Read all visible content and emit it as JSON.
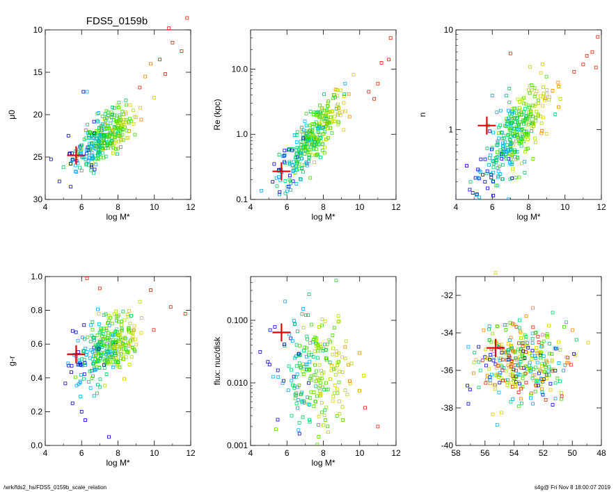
{
  "page_title": "FDS5_0159b",
  "footer": {
    "left": "/wrk/fds2_hs/FDS5_0159b_scale_relation",
    "right": "s4g@  Fri Nov  8 18:00:07 2019"
  },
  "colors": {
    "highlight": "#dd0000",
    "frame": "#000000",
    "color_scale": [
      "#0000cc",
      "#00aaff",
      "#00cc66",
      "#44dd00",
      "#aadd00",
      "#ddcc00",
      "#ee8800",
      "#dd2200"
    ]
  },
  "chart_data": [
    {
      "type": "scatter",
      "id": "mu0",
      "title": "FDS5_0159b",
      "xlabel": "log M*",
      "ylabel": "μ0",
      "xlim": [
        4,
        12
      ],
      "ylim": [
        30,
        10
      ],
      "yscale": "linear",
      "xticks": [
        "4",
        "6",
        "8",
        "10",
        "12"
      ],
      "yticks": [
        "10",
        "15",
        "20",
        "25",
        "30"
      ],
      "highlight": {
        "x": 5.7,
        "y": 24.8
      },
      "cloud": {
        "xc": 7.2,
        "yc": 22.8,
        "slope": -1.55,
        "sx": 0.85,
        "sy": 1.3
      },
      "points": [
        {
          "x": 11.8,
          "y": 8.6,
          "c": 7
        },
        {
          "x": 10.8,
          "y": 9.8,
          "c": 7
        },
        {
          "x": 11.0,
          "y": 11.5,
          "c": 7
        },
        {
          "x": 11.5,
          "y": 12.5,
          "c": 7
        },
        {
          "x": 10.3,
          "y": 13.5,
          "c": 7
        },
        {
          "x": 10.6,
          "y": 15.2,
          "c": 7
        },
        {
          "x": 9.8,
          "y": 14.0,
          "c": 6
        },
        {
          "x": 9.5,
          "y": 15.5,
          "c": 6
        },
        {
          "x": 9.2,
          "y": 16.8,
          "c": 7
        },
        {
          "x": 6.1,
          "y": 17.3,
          "c": 0
        },
        {
          "x": 6.3,
          "y": 17.3,
          "c": 1
        },
        {
          "x": 5.0,
          "y": 26.2,
          "c": 2
        },
        {
          "x": 5.4,
          "y": 25.8,
          "c": 0
        },
        {
          "x": 6.0,
          "y": 26.6,
          "c": 2
        }
      ]
    },
    {
      "type": "scatter",
      "id": "re",
      "xlabel": "log M*",
      "ylabel": "Re (kpc)",
      "xlim": [
        4,
        12
      ],
      "ylim": [
        0.1,
        40
      ],
      "yscale": "log",
      "xticks": [
        "4",
        "6",
        "8",
        "10",
        "12"
      ],
      "yticks": [
        {
          "v": 0.1,
          "label": "0.1"
        },
        {
          "v": 1.0,
          "label": "1.0"
        },
        {
          "v": 10.0,
          "label": "10.0"
        }
      ],
      "highlight": {
        "x": 5.7,
        "y": 0.27
      },
      "cloud": {
        "xc": 7.3,
        "yc": -0.08,
        "slope": 0.32,
        "sx": 0.9,
        "sy": 0.2
      },
      "points": [
        {
          "x": 11.7,
          "y": 30.0,
          "c": 7
        },
        {
          "x": 11.6,
          "y": 14.0,
          "c": 7
        },
        {
          "x": 11.2,
          "y": 12.5,
          "c": 7
        },
        {
          "x": 11.0,
          "y": 6.0,
          "c": 7
        },
        {
          "x": 10.5,
          "y": 4.5,
          "c": 7
        },
        {
          "x": 10.8,
          "y": 3.5,
          "c": 7
        },
        {
          "x": 9.2,
          "y": 6.0,
          "c": 1
        },
        {
          "x": 5.6,
          "y": 0.13,
          "c": 0
        },
        {
          "x": 6.2,
          "y": 0.14,
          "c": 1
        }
      ]
    },
    {
      "type": "scatter",
      "id": "n",
      "xlabel": "log M*",
      "ylabel": "n",
      "xlim": [
        4,
        12
      ],
      "ylim": [
        0.2,
        10
      ],
      "yscale": "log",
      "xticks": [
        "4",
        "6",
        "8",
        "10",
        "12"
      ],
      "yticks": [
        {
          "v": 1,
          "label": "1"
        },
        {
          "v": 10,
          "label": "10"
        }
      ],
      "highlight": {
        "x": 5.7,
        "y": 1.1
      },
      "cloud": {
        "xc": 7.3,
        "yc": -0.05,
        "slope": 0.2,
        "sx": 0.9,
        "sy": 0.18
      },
      "points": [
        {
          "x": 11.8,
          "y": 8.5,
          "c": 7
        },
        {
          "x": 11.5,
          "y": 6.0,
          "c": 7
        },
        {
          "x": 11.2,
          "y": 5.5,
          "c": 7
        },
        {
          "x": 11.0,
          "y": 4.5,
          "c": 7
        },
        {
          "x": 10.5,
          "y": 3.8,
          "c": 7
        },
        {
          "x": 11.7,
          "y": 4.2,
          "c": 7
        },
        {
          "x": 7.0,
          "y": 5.8,
          "c": 7
        },
        {
          "x": 6.0,
          "y": 2.2,
          "c": 1
        },
        {
          "x": 4.8,
          "y": 0.3,
          "c": 2
        },
        {
          "x": 5.6,
          "y": 0.3,
          "c": 0
        },
        {
          "x": 5.2,
          "y": 0.33,
          "c": 1
        }
      ]
    },
    {
      "type": "scatter",
      "id": "gr",
      "xlabel": "log M*",
      "ylabel": "g-r",
      "xlim": [
        4,
        12
      ],
      "ylim": [
        0.0,
        1.0
      ],
      "yscale": "linear",
      "xticks": [
        "4",
        "6",
        "8",
        "10",
        "12"
      ],
      "yticks": [
        "0.0",
        "0.2",
        "0.4",
        "0.6",
        "0.8",
        "1.0"
      ],
      "highlight": {
        "x": 5.7,
        "y": 0.54
      },
      "cloud": {
        "xc": 7.4,
        "yc": 0.58,
        "slope": 0.05,
        "sx": 0.9,
        "sy": 0.09
      },
      "points": [
        {
          "x": 6.3,
          "y": 0.99,
          "c": 7
        },
        {
          "x": 7.0,
          "y": 0.93,
          "c": 7
        },
        {
          "x": 9.8,
          "y": 0.92,
          "c": 7
        },
        {
          "x": 10.9,
          "y": 0.82,
          "c": 7
        },
        {
          "x": 11.7,
          "y": 0.78,
          "c": 7
        },
        {
          "x": 6.0,
          "y": 0.2,
          "c": 0
        },
        {
          "x": 6.2,
          "y": 0.15,
          "c": 0
        },
        {
          "x": 7.5,
          "y": 0.05,
          "c": 0
        },
        {
          "x": 5.5,
          "y": 0.25,
          "c": 0
        }
      ]
    },
    {
      "type": "scatter",
      "id": "flux",
      "xlabel": "log M*",
      "ylabel": "flux: nuc/disk",
      "xlim": [
        4,
        12
      ],
      "ylim": [
        0.001,
        0.5
      ],
      "yscale": "log",
      "xticks": [
        "4",
        "6",
        "8",
        "10",
        "12"
      ],
      "yticks": [
        {
          "v": 0.001,
          "label": "0.001"
        },
        {
          "v": 0.01,
          "label": "0.010"
        },
        {
          "v": 0.1,
          "label": "0.100"
        }
      ],
      "highlight": {
        "x": 5.7,
        "y": 0.064
      },
      "cloud": {
        "xc": 7.5,
        "yc": -1.85,
        "slope": 0.0,
        "sx": 1.0,
        "sy": 0.45
      },
      "points": [
        {
          "x": 5.9,
          "y": 0.2,
          "c": 1
        },
        {
          "x": 10.3,
          "y": 0.004,
          "c": 7
        },
        {
          "x": 11.0,
          "y": 0.002,
          "c": 7
        }
      ]
    },
    {
      "type": "scatter",
      "id": "radec",
      "xlabel": "",
      "ylabel": "",
      "xlim": [
        59,
        48
      ],
      "ylim": [
        -40,
        -31
      ],
      "yscale": "linear",
      "xticks": [
        "58",
        "56",
        "54",
        "52",
        "50",
        "48"
      ],
      "yticks": [
        "-32",
        "-34",
        "-36",
        "-38",
        "-40"
      ],
      "highlight": {
        "x": 56.0,
        "y": -34.8
      },
      "cloud": {
        "xc": 54.0,
        "yc": -35.5,
        "slope": 0.0,
        "sx": 1.7,
        "sy": 1.1
      },
      "points": [
        {
          "x": 56.0,
          "y": -30.8,
          "c": 5
        }
      ]
    }
  ]
}
